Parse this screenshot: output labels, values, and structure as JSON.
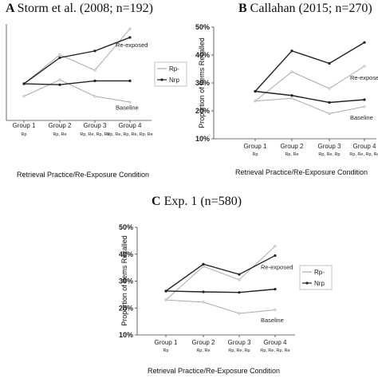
{
  "chart_data": [
    {
      "type": "line",
      "panel": "A",
      "title": "Storm et al. (2008; n=192)",
      "xlabel": "Retrieval Practice/Re-Exposure Condition",
      "ylabel": "",
      "ylim": [
        0,
        1
      ],
      "show_yticks": false,
      "categories": [
        "Group 1",
        "Group 2",
        "Group 3",
        "Group 4"
      ],
      "category_sublabels": [
        "Rp",
        "Rp, Re",
        "Rp, Re, Rp, Re",
        "Rp, Re, Rp, Re, Rp, Re"
      ],
      "series": [
        {
          "name": "Rp-",
          "group": "Re-exposed",
          "values": [
            0.38,
            0.68,
            0.52,
            0.95
          ],
          "color": "#aaaaaa"
        },
        {
          "name": "Nrp",
          "group": "Re-exposed",
          "values": [
            0.38,
            0.65,
            0.72,
            0.86
          ],
          "color": "#222222"
        },
        {
          "name": "Rp-",
          "group": "Baseline",
          "values": [
            0.25,
            0.42,
            0.25,
            0.19
          ],
          "color": "#aaaaaa"
        },
        {
          "name": "Nrp",
          "group": "Baseline",
          "values": [
            0.38,
            0.37,
            0.41,
            0.41
          ],
          "color": "#222222"
        }
      ],
      "annotations": [
        {
          "text": "Re-exposed",
          "x": 3,
          "y": 0.76
        },
        {
          "text": "Baseline",
          "x": 3,
          "y": 0.11
        }
      ],
      "legend": {
        "position": "right",
        "entries": [
          "Rp-",
          "Nrp"
        ]
      }
    },
    {
      "type": "line",
      "panel": "B",
      "title": "Callahan (2015; n=270)",
      "xlabel": "Retrieval Practice/Re-Exposure Condition",
      "ylabel": "Proportion of Items Recalled",
      "ylim": [
        10,
        50
      ],
      "yticks": [
        "10%",
        "20%",
        "30%",
        "40%",
        "50%"
      ],
      "show_yticks": true,
      "categories": [
        "Group 1",
        "Group 2",
        "Group 3",
        "Group 4"
      ],
      "category_sublabels": [
        "Rp",
        "Rp, Re",
        "Rp, Re, Rp",
        "Rp, Re, Rp, Re"
      ],
      "series": [
        {
          "name": "Rp-",
          "group": "Re-exposed",
          "values": [
            23.5,
            34,
            28,
            36
          ],
          "color": "#aaaaaa"
        },
        {
          "name": "Nrp",
          "group": "Re-exposed",
          "values": [
            27,
            41.5,
            37,
            44.5
          ],
          "color": "#222222"
        },
        {
          "name": "Rp-",
          "group": "Baseline",
          "values": [
            23.5,
            24.5,
            19,
            21.5
          ],
          "color": "#aaaaaa"
        },
        {
          "name": "Nrp",
          "group": "Baseline",
          "values": [
            27,
            25.5,
            23,
            24
          ],
          "color": "#222222"
        }
      ],
      "annotations": [
        {
          "text": "Re-exposed",
          "x": 3,
          "y": 31.2
        },
        {
          "text": "Baseline",
          "x": 3,
          "y": 16.8
        }
      ]
    },
    {
      "type": "line",
      "panel": "C",
      "title": "Exp. 1 (n=580)",
      "xlabel": "Retrieval Practice/Re-Exposure Condition",
      "ylabel": "Proportion of Items Recalled",
      "ylim": [
        10,
        50
      ],
      "yticks": [
        "10%",
        "20%",
        "30%",
        "40%",
        "50%"
      ],
      "show_yticks": true,
      "categories": [
        "Group 1",
        "Group 2",
        "Group 3",
        "Group 4"
      ],
      "category_sublabels": [
        "Rp",
        "Rp, Re",
        "Rp, Re, Rp",
        "Rp, Re, Rp, Re"
      ],
      "series": [
        {
          "name": "Rp-",
          "group": "Re-exposed",
          "values": [
            23,
            35.5,
            30.5,
            43
          ],
          "color": "#aaaaaa"
        },
        {
          "name": "Nrp",
          "group": "Re-exposed",
          "values": [
            26.3,
            36.3,
            32.5,
            39.5
          ],
          "color": "#222222"
        },
        {
          "name": "Rp-",
          "group": "Baseline",
          "values": [
            23,
            22.2,
            18,
            19.3
          ],
          "color": "#aaaaaa"
        },
        {
          "name": "Nrp",
          "group": "Baseline",
          "values": [
            26.3,
            26,
            25.8,
            27
          ],
          "color": "#222222"
        }
      ],
      "annotations": [
        {
          "text": "Re-exposed",
          "x": 3,
          "y": 34.5
        },
        {
          "text": "Baseline",
          "x": 3,
          "y": 14.8
        }
      ],
      "legend": {
        "position": "right",
        "entries": [
          "Rp-",
          "Nrp"
        ]
      }
    }
  ]
}
